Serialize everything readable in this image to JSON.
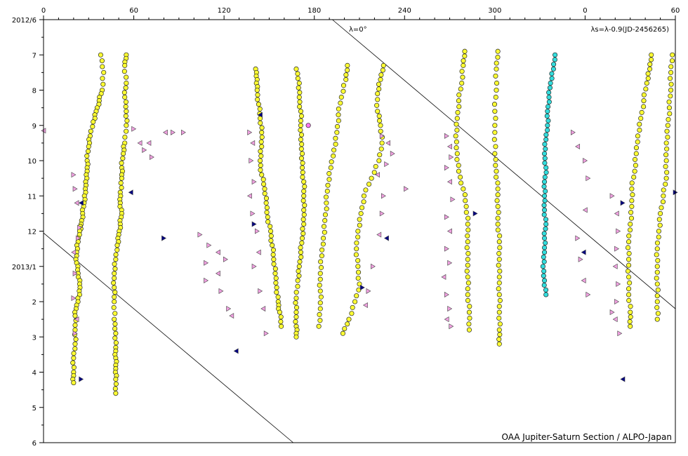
{
  "chart_data": {
    "type": "scatter",
    "title": "",
    "xlabel": "",
    "ylabel": "",
    "x_ticks": [
      "0",
      "60",
      "120",
      "180",
      "240",
      "300",
      "0",
      "60"
    ],
    "y_ticks": [
      "2012/6",
      "7",
      "8",
      "9",
      "10",
      "11",
      "12",
      "2013/1",
      "2",
      "3",
      "4",
      "5",
      "6"
    ],
    "x_range_deg": [
      0,
      420
    ],
    "time_range_months": [
      0,
      12
    ],
    "annotations": {
      "lambda_zero": "λ=0°",
      "lambda_s": "λs=λ-0.9(JD-2456265)",
      "credit": "OAA Jupiter-Saturn Section / ALPO-Japan"
    },
    "grid": false,
    "colors": {
      "yellow_marker": "#ffff33",
      "cyan_marker": "#33dddd",
      "pink_marker": "#f0a0e0",
      "navy_marker": "#000080",
      "magenta_point": "#ff77ee"
    },
    "lambda_zero_lines": [
      {
        "x_start": 192,
        "t_start": 0,
        "x_end": 420,
        "t_end": 8.2
      },
      {
        "x_start": 0,
        "t_start": 6.05,
        "x_end": 166,
        "t_end": 12
      }
    ],
    "series": [
      {
        "marker": "yellow-circle",
        "tracks": [
          {
            "x": [
              38,
              40,
              39,
              37,
              35,
              33,
              31,
              30,
              29,
              29,
              28,
              28,
              27,
              26,
              25,
              24,
              23,
              22,
              22,
              23,
              24,
              24,
              22,
              21,
              21,
              21,
              20,
              20,
              20
            ],
            "t": [
              1.0,
              1.5,
              2.0,
              2.3,
              2.6,
              2.9,
              3.3,
              3.6,
              4.0,
              4.3,
              4.6,
              4.9,
              5.2,
              5.5,
              5.8,
              6.0,
              6.3,
              6.6,
              6.9,
              7.2,
              7.5,
              7.8,
              8.1,
              8.4,
              8.8,
              9.2,
              9.6,
              10.0,
              10.3
            ]
          },
          {
            "x": [
              55,
              54,
              55,
              54,
              55,
              55,
              54,
              53,
              52,
              52,
              51,
              51,
              52,
              51,
              50,
              49,
              48,
              47,
              47,
              47,
              47,
              48,
              48,
              48,
              48,
              48,
              48
            ],
            "t": [
              1.0,
              1.3,
              1.8,
              2.2,
              2.6,
              3.0,
              3.5,
              3.8,
              4.2,
              4.5,
              4.9,
              5.2,
              5.5,
              5.8,
              6.1,
              6.4,
              6.8,
              7.2,
              7.6,
              8.0,
              8.5,
              8.9,
              9.3,
              9.6,
              9.9,
              10.2,
              10.6
            ]
          },
          {
            "x": [
              141,
              142,
              142,
              143,
              144,
              145,
              145,
              144,
              145,
              147,
              148,
              149,
              151,
              152,
              153,
              154,
              155,
              156,
              157,
              158
            ],
            "t": [
              1.4,
              1.7,
              2.0,
              2.4,
              2.8,
              3.2,
              3.6,
              4.0,
              4.4,
              4.8,
              5.2,
              5.6,
              6.0,
              6.4,
              6.8,
              7.2,
              7.6,
              8.0,
              8.3,
              8.7
            ]
          },
          {
            "x": [
              168,
              170,
              170,
              171,
              171,
              171,
              172,
              172,
              173,
              173,
              173,
              173,
              172,
              171,
              170,
              169,
              168,
              168,
              168,
              168
            ],
            "t": [
              1.4,
              1.8,
              2.2,
              2.6,
              3.0,
              3.4,
              3.8,
              4.2,
              4.6,
              5.0,
              5.4,
              5.8,
              6.2,
              6.6,
              7.0,
              7.4,
              7.9,
              8.3,
              8.7,
              9.0
            ]
          },
          {
            "x": [
              202,
              201,
              198,
              196,
              195,
              193,
              191,
              189,
              188,
              187,
              186,
              185,
              184,
              184,
              184,
              183
            ],
            "t": [
              1.3,
              1.7,
              2.2,
              2.7,
              3.2,
              3.7,
              4.2,
              4.7,
              5.2,
              5.7,
              6.2,
              6.7,
              7.2,
              7.7,
              8.2,
              8.7
            ]
          },
          {
            "x": [
              226,
              224,
              222,
              222,
              224,
              225,
              223,
              218,
              213,
              211,
              209,
              208,
              209,
              210,
              207,
              203,
              199
            ],
            "t": [
              1.3,
              1.7,
              2.1,
              2.6,
              3.0,
              3.5,
              4.0,
              4.5,
              5.0,
              5.5,
              6.0,
              6.5,
              7.0,
              7.5,
              8.0,
              8.5,
              8.9
            ]
          },
          {
            "x": [
              280,
              279,
              278,
              276,
              275,
              274,
              275,
              276,
              279,
              281,
              282,
              282,
              282,
              282,
              282,
              283,
              283
            ],
            "t": [
              0.9,
              1.3,
              1.8,
              2.3,
              2.8,
              3.3,
              3.8,
              4.3,
              4.8,
              5.3,
              5.8,
              6.3,
              6.8,
              7.3,
              7.8,
              8.3,
              8.8
            ]
          },
          {
            "x": [
              302,
              301,
              301,
              300,
              300,
              300,
              301,
              302,
              302,
              302,
              303,
              303,
              303,
              303,
              303,
              303,
              303
            ],
            "t": [
              0.9,
              1.4,
              2.0,
              2.6,
              3.2,
              3.8,
              4.3,
              4.8,
              5.3,
              5.8,
              6.3,
              6.8,
              7.3,
              7.8,
              8.3,
              8.8,
              9.2
            ]
          },
          {
            "x": [
              404,
              403,
              401,
              399,
              397,
              395,
              394,
              393,
              391,
              391,
              390,
              389,
              389,
              389,
              389,
              390,
              390
            ],
            "t": [
              1.0,
              1.4,
              1.8,
              2.3,
              2.8,
              3.3,
              3.8,
              4.3,
              4.8,
              5.3,
              5.8,
              6.3,
              6.8,
              7.3,
              7.8,
              8.3,
              8.7
            ]
          },
          {
            "x": [
              418,
              417,
              417,
              416,
              415,
              414,
              414,
              414,
              412,
              410,
              409,
              408,
              408,
              408,
              408,
              408
            ],
            "t": [
              1.0,
              1.5,
              2.0,
              2.5,
              3.0,
              3.5,
              4.0,
              4.5,
              5.0,
              5.5,
              6.0,
              6.5,
              7.0,
              7.5,
              8.0,
              8.5
            ]
          }
        ]
      },
      {
        "marker": "cyan-circle",
        "tracks": [
          {
            "x": [
              340,
              339,
              337,
              336,
              335,
              335,
              334,
              333,
              334,
              333,
              333,
              333,
              334,
              333,
              333,
              332,
              333,
              334
            ],
            "t": [
              1.0,
              1.4,
              1.8,
              2.2,
              2.6,
              3.0,
              3.4,
              3.8,
              4.2,
              4.6,
              5.0,
              5.4,
              5.8,
              6.2,
              6.6,
              7.0,
              7.4,
              7.8
            ]
          }
        ]
      },
      {
        "marker": "pink-triangle",
        "points": [
          {
            "x": 0,
            "t": 3.15
          },
          {
            "x": 20,
            "t": 4.4
          },
          {
            "x": 21,
            "t": 4.8
          },
          {
            "x": 22,
            "t": 5.2
          },
          {
            "x": 24,
            "t": 5.9
          },
          {
            "x": 23,
            "t": 6.2
          },
          {
            "x": 20,
            "t": 6.6
          },
          {
            "x": 21,
            "t": 7.2
          },
          {
            "x": 20,
            "t": 7.9
          },
          {
            "x": 22,
            "t": 8.5
          },
          {
            "x": 21,
            "t": 8.9
          },
          {
            "x": 60,
            "t": 3.1
          },
          {
            "x": 64,
            "t": 3.5
          },
          {
            "x": 67,
            "t": 3.7
          },
          {
            "x": 72,
            "t": 3.9
          },
          {
            "x": 81,
            "t": 3.2
          },
          {
            "x": 86,
            "t": 3.2
          },
          {
            "x": 93,
            "t": 3.2
          },
          {
            "x": 70,
            "t": 3.5
          },
          {
            "x": 104,
            "t": 6.1
          },
          {
            "x": 110,
            "t": 6.4
          },
          {
            "x": 116,
            "t": 6.6
          },
          {
            "x": 121,
            "t": 6.8
          },
          {
            "x": 108,
            "t": 6.9
          },
          {
            "x": 116,
            "t": 7.2
          },
          {
            "x": 118,
            "t": 7.7
          },
          {
            "x": 123,
            "t": 8.2
          },
          {
            "x": 125,
            "t": 8.4
          },
          {
            "x": 108,
            "t": 7.4
          },
          {
            "x": 137,
            "t": 3.2
          },
          {
            "x": 139,
            "t": 3.5
          },
          {
            "x": 138,
            "t": 4.0
          },
          {
            "x": 140,
            "t": 4.6
          },
          {
            "x": 137,
            "t": 5.0
          },
          {
            "x": 139,
            "t": 5.5
          },
          {
            "x": 142,
            "t": 6.0
          },
          {
            "x": 143,
            "t": 6.6
          },
          {
            "x": 140,
            "t": 7.0
          },
          {
            "x": 144,
            "t": 7.7
          },
          {
            "x": 146,
            "t": 8.2
          },
          {
            "x": 148,
            "t": 8.9
          },
          {
            "x": 225,
            "t": 3.3
          },
          {
            "x": 229,
            "t": 3.5
          },
          {
            "x": 232,
            "t": 3.8
          },
          {
            "x": 228,
            "t": 4.1
          },
          {
            "x": 222,
            "t": 4.4
          },
          {
            "x": 226,
            "t": 5.0
          },
          {
            "x": 225,
            "t": 5.5
          },
          {
            "x": 223,
            "t": 6.1
          },
          {
            "x": 219,
            "t": 7.0
          },
          {
            "x": 216,
            "t": 7.7
          },
          {
            "x": 214,
            "t": 8.1
          },
          {
            "x": 241,
            "t": 4.8
          },
          {
            "x": 268,
            "t": 3.3
          },
          {
            "x": 270,
            "t": 3.6
          },
          {
            "x": 271,
            "t": 3.9
          },
          {
            "x": 268,
            "t": 4.2
          },
          {
            "x": 270,
            "t": 4.6
          },
          {
            "x": 272,
            "t": 5.1
          },
          {
            "x": 268,
            "t": 5.6
          },
          {
            "x": 270,
            "t": 6.0
          },
          {
            "x": 268,
            "t": 6.5
          },
          {
            "x": 270,
            "t": 6.9
          },
          {
            "x": 266,
            "t": 7.3
          },
          {
            "x": 268,
            "t": 7.8
          },
          {
            "x": 270,
            "t": 8.2
          },
          {
            "x": 268,
            "t": 8.5
          },
          {
            "x": 271,
            "t": 8.7
          },
          {
            "x": 352,
            "t": 3.2
          },
          {
            "x": 355,
            "t": 3.6
          },
          {
            "x": 360,
            "t": 4.0
          },
          {
            "x": 362,
            "t": 4.5
          },
          {
            "x": 360,
            "t": 5.4
          },
          {
            "x": 355,
            "t": 6.2
          },
          {
            "x": 357,
            "t": 6.8
          },
          {
            "x": 359,
            "t": 7.4
          },
          {
            "x": 362,
            "t": 7.8
          },
          {
            "x": 378,
            "t": 5.0
          },
          {
            "x": 381,
            "t": 5.5
          },
          {
            "x": 382,
            "t": 6.0
          },
          {
            "x": 381,
            "t": 6.5
          },
          {
            "x": 380,
            "t": 7.0
          },
          {
            "x": 382,
            "t": 7.5
          },
          {
            "x": 381,
            "t": 8.0
          },
          {
            "x": 380,
            "t": 8.5
          },
          {
            "x": 383,
            "t": 8.9
          },
          {
            "x": 378,
            "t": 8.3
          }
        ]
      },
      {
        "marker": "navy-triangle",
        "points": [
          {
            "x": 25,
            "t": 5.2
          },
          {
            "x": 25,
            "t": 10.2
          },
          {
            "x": 58,
            "t": 4.9
          },
          {
            "x": 80,
            "t": 6.2
          },
          {
            "x": 128,
            "t": 9.4
          },
          {
            "x": 140,
            "t": 5.8
          },
          {
            "x": 144,
            "t": 2.7
          },
          {
            "x": 212,
            "t": 7.6
          },
          {
            "x": 228,
            "t": 6.2
          },
          {
            "x": 287,
            "t": 5.5
          },
          {
            "x": 359,
            "t": 6.6
          },
          {
            "x": 385,
            "t": 5.2
          },
          {
            "x": 385,
            "t": 10.2
          },
          {
            "x": 420,
            "t": 4.9
          }
        ]
      },
      {
        "marker": "magenta-circle",
        "points": [
          {
            "x": 176,
            "t": 3.0
          }
        ]
      }
    ]
  }
}
